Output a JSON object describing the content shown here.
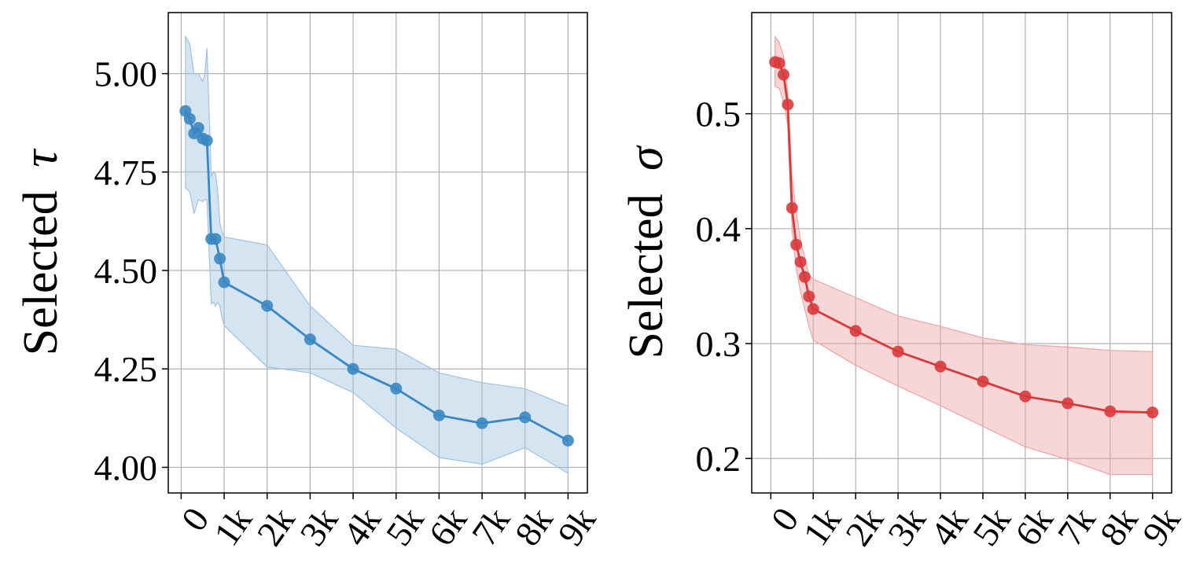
{
  "chart_data": [
    {
      "type": "line",
      "ylabel_prefix": "Selected",
      "ylabel_symbol": "τ",
      "xlabel": "",
      "color": "#3a87c2",
      "band_color": "#9fc3e0",
      "xlim": [
        -300,
        9450
      ],
      "ylim": [
        3.935,
        5.155
      ],
      "xticks": [
        0,
        1000,
        2000,
        3000,
        4000,
        5000,
        6000,
        7000,
        8000,
        9000
      ],
      "xtick_labels": [
        "0",
        "1k",
        "2k",
        "3k",
        "4k",
        "5k",
        "6k",
        "7k",
        "8k",
        "9k"
      ],
      "yticks": [
        4.0,
        4.25,
        4.5,
        4.75,
        5.0
      ],
      "ytick_labels": [
        "4.00",
        "4.25",
        "4.50",
        "4.75",
        "5.00"
      ],
      "grid": true,
      "series": [
        {
          "name": "Selected τ",
          "x": [
            100,
            200,
            300,
            400,
            500,
            600,
            700,
            800,
            900,
            1000,
            2000,
            3000,
            4000,
            5000,
            6000,
            7000,
            8000,
            9000
          ],
          "y": [
            4.905,
            4.885,
            4.848,
            4.862,
            4.835,
            4.83,
            4.58,
            4.58,
            4.53,
            4.47,
            4.41,
            4.325,
            4.25,
            4.2,
            4.132,
            4.112,
            4.127,
            4.068
          ],
          "band_x": [
            100,
            200,
            300,
            400,
            500,
            550,
            600,
            700,
            750,
            800,
            850,
            900,
            950,
            1000,
            2000,
            3000,
            4000,
            5000,
            6000,
            7000,
            8000,
            9000
          ],
          "band_upper": [
            5.095,
            5.075,
            5.0,
            5.0,
            4.98,
            5.0,
            5.065,
            4.74,
            4.75,
            4.745,
            4.7,
            4.62,
            4.6,
            4.585,
            4.565,
            4.41,
            4.31,
            4.3,
            4.24,
            4.215,
            4.2,
            4.155
          ],
          "band_lower": [
            4.71,
            4.7,
            4.645,
            4.68,
            4.675,
            4.68,
            4.68,
            4.415,
            4.42,
            4.41,
            4.42,
            4.41,
            4.38,
            4.36,
            4.255,
            4.24,
            4.19,
            4.1,
            4.025,
            4.008,
            4.05,
            3.985
          ]
        }
      ]
    },
    {
      "type": "line",
      "ylabel_prefix": "Selected",
      "ylabel_symbol": "σ",
      "xlabel": "",
      "color": "#d83a3c",
      "band_color": "#eea4a6",
      "xlim": [
        -450,
        9450
      ],
      "ylim": [
        0.17,
        0.588
      ],
      "xticks": [
        0,
        1000,
        2000,
        3000,
        4000,
        5000,
        6000,
        7000,
        8000,
        9000
      ],
      "xtick_labels": [
        "0",
        "1k",
        "2k",
        "3k",
        "4k",
        "5k",
        "6k",
        "7k",
        "8k",
        "9k"
      ],
      "yticks": [
        0.2,
        0.3,
        0.4,
        0.5
      ],
      "ytick_labels": [
        "0.2",
        "0.3",
        "0.4",
        "0.5"
      ],
      "grid": true,
      "series": [
        {
          "name": "Selected σ",
          "x": [
            100,
            200,
            300,
            400,
            500,
            600,
            700,
            800,
            900,
            1000,
            2000,
            3000,
            4000,
            5000,
            6000,
            7000,
            8000,
            9000
          ],
          "y": [
            0.545,
            0.544,
            0.534,
            0.508,
            0.418,
            0.386,
            0.371,
            0.358,
            0.341,
            0.33,
            0.311,
            0.293,
            0.28,
            0.267,
            0.254,
            0.248,
            0.241,
            0.24
          ],
          "band_x": [
            100,
            200,
            300,
            400,
            500,
            600,
            700,
            800,
            900,
            1000,
            2000,
            3000,
            4000,
            5000,
            6000,
            7000,
            8000,
            9000
          ],
          "band_upper": [
            0.567,
            0.562,
            0.55,
            0.52,
            0.445,
            0.415,
            0.39,
            0.375,
            0.36,
            0.356,
            0.34,
            0.324,
            0.315,
            0.305,
            0.299,
            0.297,
            0.294,
            0.293
          ],
          "band_lower": [
            0.524,
            0.522,
            0.51,
            0.49,
            0.4,
            0.365,
            0.345,
            0.33,
            0.315,
            0.303,
            0.281,
            0.263,
            0.246,
            0.228,
            0.21,
            0.199,
            0.186,
            0.186
          ]
        }
      ]
    }
  ]
}
